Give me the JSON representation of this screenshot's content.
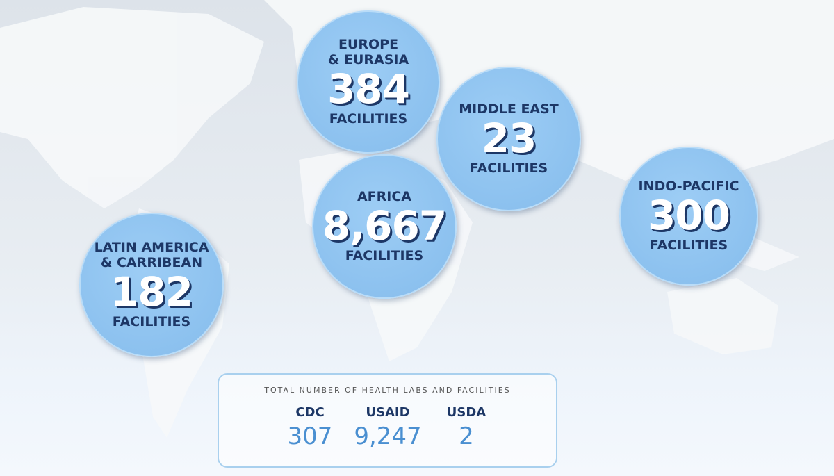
{
  "regions": [
    {
      "name_lines": [
        "EUROPE",
        "& EURASIA"
      ],
      "count": "384",
      "unit": "FACILITIES"
    },
    {
      "name_lines": [
        "MIDDLE EAST"
      ],
      "count": "23",
      "unit": "FACILITIES"
    },
    {
      "name_lines": [
        "AFRICA"
      ],
      "count": "8,667",
      "unit": "FACILITIES"
    },
    {
      "name_lines": [
        "INDO-PACIFIC"
      ],
      "count": "300",
      "unit": "FACILITIES"
    },
    {
      "name_lines": [
        "LATIN AMERICA",
        "& CARRIBEAN"
      ],
      "count": "182",
      "unit": "FACILITIES"
    }
  ],
  "totals": {
    "title": "TOTAL NUMBER OF HEALTH LABS AND FACILITIES",
    "agencies": [
      {
        "name": "CDC",
        "value": "307"
      },
      {
        "name": "USAID",
        "value": "9,247"
      },
      {
        "name": "USDA",
        "value": "2"
      }
    ]
  }
}
